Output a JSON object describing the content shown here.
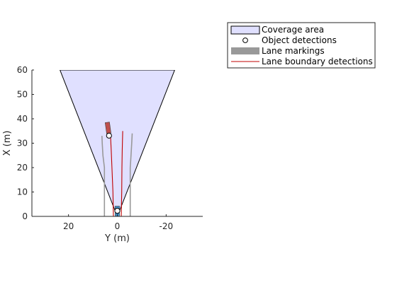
{
  "chart_data": {
    "type": "bird's-eye plot",
    "xlabel": "Y (m)",
    "ylabel": "X (m)",
    "xlim": [
      35,
      -35
    ],
    "ylim": [
      0,
      60
    ],
    "x_ticks": [
      20,
      0,
      -20
    ],
    "y_ticks": [
      0,
      10,
      20,
      30,
      40,
      50,
      60
    ],
    "x_tick_labels": [
      "20",
      "0",
      "-20"
    ],
    "y_tick_labels": [
      "0",
      "10",
      "20",
      "30",
      "40",
      "50",
      "60"
    ],
    "legend": {
      "placement": "outside-top-right",
      "entries": [
        {
          "label": "Coverage area",
          "kind": "patch"
        },
        {
          "label": "Object detections",
          "kind": "marker"
        },
        {
          "label": "Lane markings",
          "kind": "thick-line"
        },
        {
          "label": "Lane boundary detections",
          "kind": "line"
        }
      ]
    },
    "coverage_area": {
      "origin": [
        0,
        0
      ],
      "far_edge_y": [
        23.5,
        -23.5
      ],
      "far_edge_x": 60,
      "fill": "#e0e0ff",
      "edge": "#000000"
    },
    "lane_markings": [
      {
        "points": [
          [
            5.3,
            0
          ],
          [
            5.3,
            20
          ],
          [
            5.9,
            25
          ],
          [
            6.2,
            30
          ],
          [
            6.3,
            33
          ]
        ]
      },
      {
        "points": [
          [
            -5.3,
            0
          ],
          [
            -5.3,
            20
          ],
          [
            -5.6,
            25
          ],
          [
            -5.9,
            30
          ],
          [
            -6.1,
            34
          ]
        ]
      }
    ],
    "lane_boundary_detections": [
      {
        "points": [
          [
            1.6,
            0
          ],
          [
            1.8,
            10
          ],
          [
            2.2,
            20
          ],
          [
            2.5,
            27
          ],
          [
            2.8,
            33
          ]
        ]
      },
      {
        "points": [
          [
            -1.6,
            0
          ],
          [
            -1.8,
            10
          ],
          [
            -1.9,
            20
          ],
          [
            -2.0,
            27
          ],
          [
            -2.2,
            35
          ]
        ]
      }
    ],
    "tracked_vehicle": {
      "center": [
        3.8,
        36.3
      ],
      "length": 4.5,
      "width": 1.8,
      "heading_deg": 8,
      "color": "#c0504d"
    },
    "ego_vehicle": {
      "center": [
        0,
        2.1
      ],
      "length": 4.2,
      "width": 1.8,
      "color": "#3f8dc5"
    },
    "object_detections": [
      [
        3.4,
        33.1
      ],
      [
        0,
        2.3
      ]
    ]
  }
}
